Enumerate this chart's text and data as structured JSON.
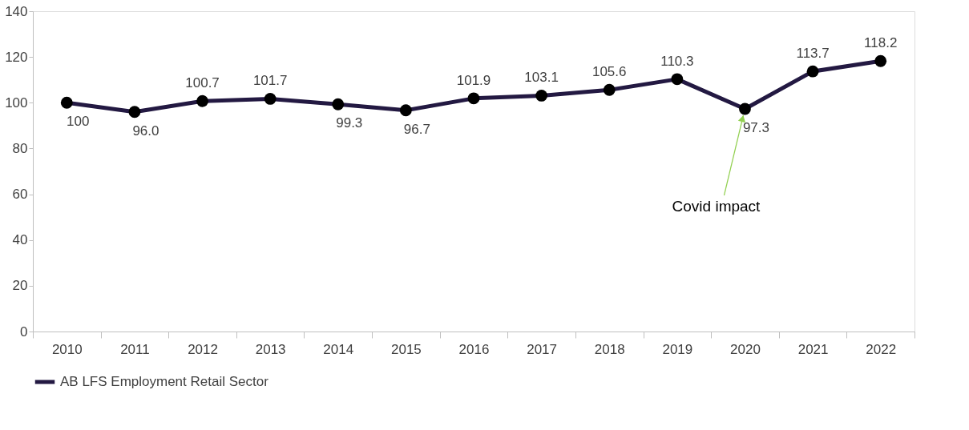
{
  "chart_data": {
    "type": "line",
    "categories": [
      "2010",
      "2011",
      "2012",
      "2013",
      "2014",
      "2015",
      "2016",
      "2017",
      "2018",
      "2019",
      "2020",
      "2021",
      "2022"
    ],
    "series": [
      {
        "name": "AB LFS Employment Retail Sector",
        "color": "#231942",
        "values": [
          100,
          96.0,
          100.7,
          101.7,
          99.3,
          96.7,
          101.9,
          103.1,
          105.6,
          110.3,
          97.3,
          113.7,
          118.2
        ],
        "value_labels": [
          "100",
          "96.0",
          "100.7",
          "101.7",
          "99.3",
          "96.7",
          "101.9",
          "103.1",
          "105.6",
          "110.3",
          "97.3",
          "113.7",
          "118.2"
        ]
      }
    ],
    "ylim": [
      0,
      140
    ],
    "yticks": [
      0,
      20,
      40,
      60,
      80,
      100,
      120,
      140
    ],
    "annotations": [
      {
        "text": "Covid impact",
        "x": "2020",
        "y": 97.3
      }
    ],
    "marker": "circle",
    "line_style": "solid",
    "grid": false,
    "legend": "bottom"
  }
}
